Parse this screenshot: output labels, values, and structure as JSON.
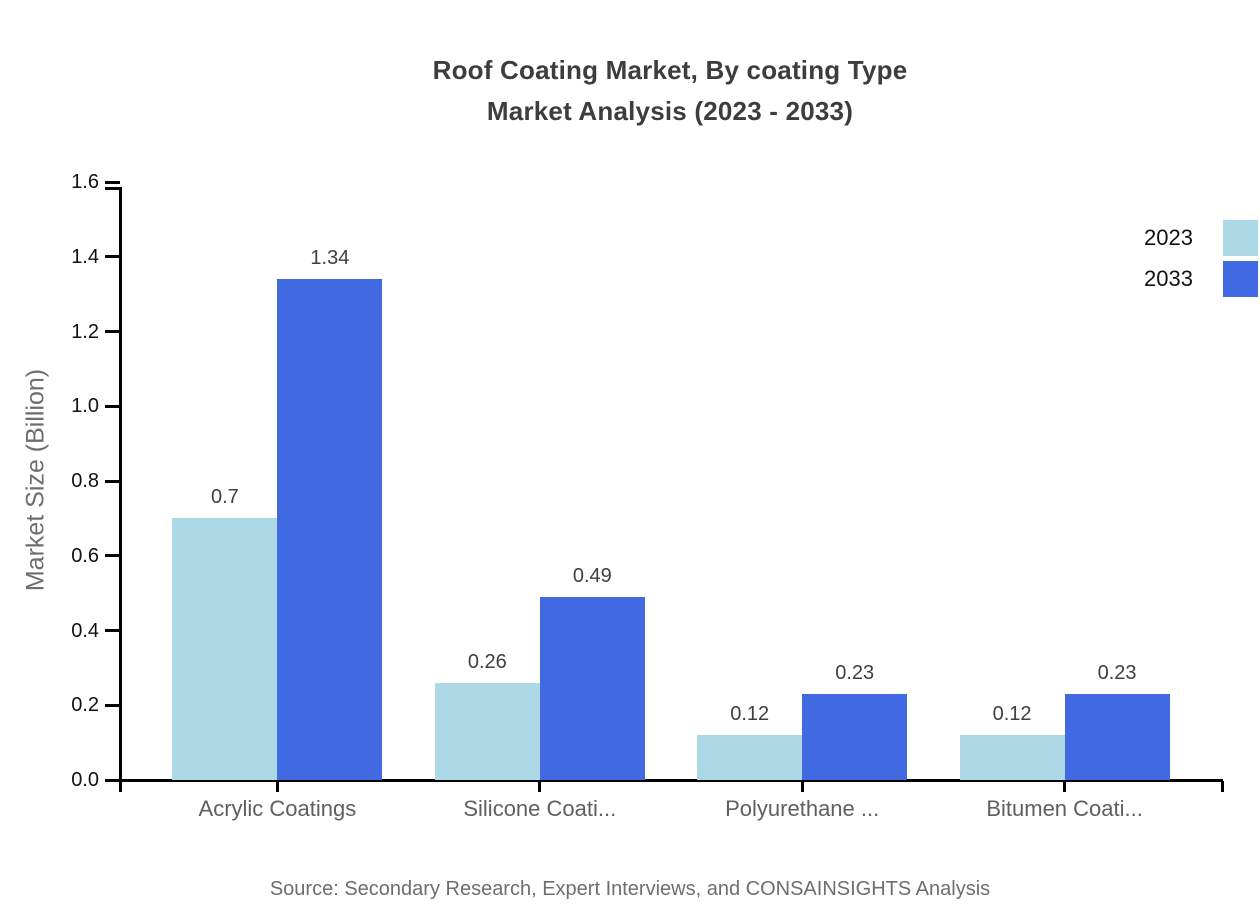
{
  "title": {
    "line1": "Roof Coating Market, By coating Type",
    "line2": "Market Analysis (2023 - 2033)"
  },
  "source": "Source: Secondary Research, Expert Interviews, and CONSAINSIGHTS Analysis",
  "legend": {
    "position": "top-right",
    "items": [
      {
        "label": "2023",
        "color": "#ADD8E6"
      },
      {
        "label": "2033",
        "color": "#4169E1"
      }
    ]
  },
  "chart_data": {
    "type": "bar",
    "title": "Roof Coating Market, By coating Type Market Analysis (2023 - 2033)",
    "categories": [
      "Acrylic Coatings",
      "Silicone Coati...",
      "Polyurethane ...",
      "Bitumen Coati..."
    ],
    "series": [
      {
        "name": "2023",
        "color": "#ADD8E6",
        "values": [
          0.7,
          0.26,
          0.12,
          0.12
        ]
      },
      {
        "name": "2033",
        "color": "#4169E1",
        "values": [
          1.34,
          0.49,
          0.23,
          0.23
        ]
      }
    ],
    "value_labels": [
      [
        "0.7",
        "0.26",
        "0.12",
        "0.12"
      ],
      [
        "1.34",
        "0.49",
        "0.23",
        "0.23"
      ]
    ],
    "xlabel": "",
    "ylabel": "Market Size (Billion)",
    "ylim": [
      0,
      1.6
    ],
    "yticks": [
      "0.0",
      "0.2",
      "0.4",
      "0.6",
      "0.8",
      "1.0",
      "1.2",
      "1.4",
      "1.6"
    ],
    "grid": false,
    "legend_position": "right-top"
  }
}
